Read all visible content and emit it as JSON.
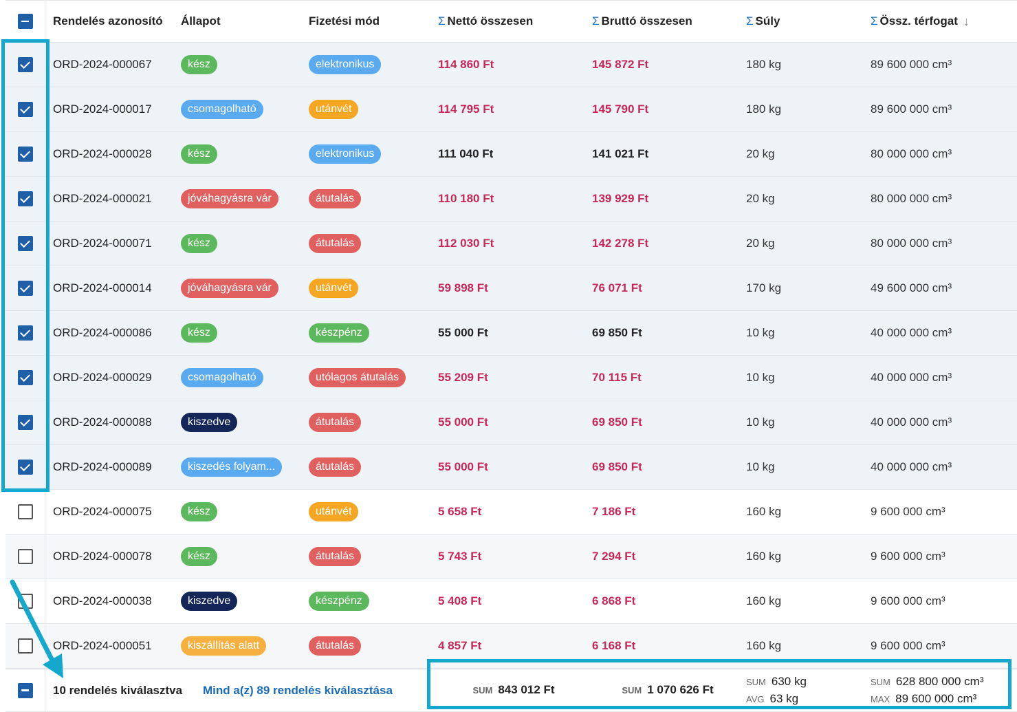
{
  "columns": {
    "id": "Rendelés azonosító",
    "status": "Állapot",
    "payment": "Fizetési mód",
    "net": "Nettó összesen",
    "gross": "Bruttó összesen",
    "weight": "Súly",
    "volume": "Össz. térfogat"
  },
  "rows": [
    {
      "id": "ORD-2024-000067",
      "status": "kész",
      "status_color": "#5cb85c",
      "payment": "elektronikus",
      "payment_color": "#5aaaf0",
      "net": "114 860 Ft",
      "gross": "145 872 Ft",
      "weight": "180 kg",
      "volume": "89 600 000 cm³",
      "selected": true,
      "money_color": "#c62858"
    },
    {
      "id": "ORD-2024-000017",
      "status": "csomagolható",
      "status_color": "#5aaaf0",
      "payment": "utánvét",
      "payment_color": "#f5a623",
      "net": "114 795 Ft",
      "gross": "145 790 Ft",
      "weight": "180 kg",
      "volume": "89 600 000 cm³",
      "selected": true,
      "money_color": "#c62858"
    },
    {
      "id": "ORD-2024-000028",
      "status": "kész",
      "status_color": "#5cb85c",
      "payment": "elektronikus",
      "payment_color": "#5aaaf0",
      "net": "111 040 Ft",
      "gross": "141 021 Ft",
      "weight": "20 kg",
      "volume": "80 000 000 cm³",
      "selected": true,
      "money_color": "#222222"
    },
    {
      "id": "ORD-2024-000021",
      "status": "jóváhagyásra vár",
      "status_color": "#e0605f",
      "payment": "átutalás",
      "payment_color": "#e0605f",
      "net": "110 180 Ft",
      "gross": "139 929 Ft",
      "weight": "20 kg",
      "volume": "80 000 000 cm³",
      "selected": true,
      "money_color": "#c62858"
    },
    {
      "id": "ORD-2024-000071",
      "status": "kész",
      "status_color": "#5cb85c",
      "payment": "átutalás",
      "payment_color": "#e0605f",
      "net": "112 030 Ft",
      "gross": "142 278 Ft",
      "weight": "20 kg",
      "volume": "80 000 000 cm³",
      "selected": true,
      "money_color": "#c62858"
    },
    {
      "id": "ORD-2024-000014",
      "status": "jóváhagyásra vár",
      "status_color": "#e0605f",
      "payment": "utánvét",
      "payment_color": "#f5a623",
      "net": "59 898 Ft",
      "gross": "76 071 Ft",
      "weight": "170 kg",
      "volume": "49 600 000 cm³",
      "selected": true,
      "money_color": "#c62858"
    },
    {
      "id": "ORD-2024-000086",
      "status": "kész",
      "status_color": "#5cb85c",
      "payment": "készpénz",
      "payment_color": "#5cb85c",
      "net": "55 000 Ft",
      "gross": "69 850 Ft",
      "weight": "10 kg",
      "volume": "40 000 000 cm³",
      "selected": true,
      "money_color": "#222222"
    },
    {
      "id": "ORD-2024-000029",
      "status": "csomagolható",
      "status_color": "#5aaaf0",
      "payment": "utólagos átutalás",
      "payment_color": "#e0605f",
      "net": "55 209 Ft",
      "gross": "70 115 Ft",
      "weight": "10 kg",
      "volume": "40 000 000 cm³",
      "selected": true,
      "money_color": "#c62858"
    },
    {
      "id": "ORD-2024-000088",
      "status": "kiszedve",
      "status_color": "#142657",
      "payment": "átutalás",
      "payment_color": "#e0605f",
      "net": "55 000 Ft",
      "gross": "69 850 Ft",
      "weight": "10 kg",
      "volume": "40 000 000 cm³",
      "selected": true,
      "money_color": "#c62858"
    },
    {
      "id": "ORD-2024-000089",
      "status": "kiszedés folyam...",
      "status_color": "#5aaaf0",
      "payment": "átutalás",
      "payment_color": "#e0605f",
      "net": "55 000 Ft",
      "gross": "69 850 Ft",
      "weight": "10 kg",
      "volume": "40 000 000 cm³",
      "selected": true,
      "money_color": "#c62858"
    },
    {
      "id": "ORD-2024-000075",
      "status": "kész",
      "status_color": "#5cb85c",
      "payment": "utánvét",
      "payment_color": "#f5a623",
      "net": "5 658 Ft",
      "gross": "7 186 Ft",
      "weight": "160 kg",
      "volume": "9 600 000 cm³",
      "selected": false,
      "money_color": "#c62858"
    },
    {
      "id": "ORD-2024-000078",
      "status": "kész",
      "status_color": "#5cb85c",
      "payment": "átutalás",
      "payment_color": "#e0605f",
      "net": "5 743 Ft",
      "gross": "7 294 Ft",
      "weight": "160 kg",
      "volume": "9 600 000 cm³",
      "selected": false,
      "money_color": "#c62858"
    },
    {
      "id": "ORD-2024-000038",
      "status": "kiszedve",
      "status_color": "#142657",
      "payment": "készpénz",
      "payment_color": "#5cb85c",
      "net": "5 408 Ft",
      "gross": "6 868 Ft",
      "weight": "160 kg",
      "volume": "9 600 000 cm³",
      "selected": false,
      "money_color": "#c62858"
    },
    {
      "id": "ORD-2024-000051",
      "status": "kiszállítás alatt",
      "status_color": "#f5b040",
      "payment": "átutalás",
      "payment_color": "#e0605f",
      "net": "4 857 Ft",
      "gross": "6 168 Ft",
      "weight": "160 kg",
      "volume": "9 600 000 cm³",
      "selected": false,
      "money_color": "#c62858"
    }
  ],
  "footer": {
    "selected_count": "10 rendelés kiválasztva",
    "select_all": "Mind a(z) 89 rendelés kiválasztása",
    "net_label": "SUM",
    "net_sum": "843 012 Ft",
    "gross_label": "SUM",
    "gross_sum": "1 070 626 Ft",
    "weight_sum_label": "SUM",
    "weight_sum": "630 kg",
    "weight_avg_label": "AVG",
    "weight_avg": "63 kg",
    "volume_sum_label": "SUM",
    "volume_sum": "628 800 000 cm³",
    "volume_max_label": "MAX",
    "volume_max": "89 600 000 cm³"
  },
  "icons": {
    "sigma": "Σ",
    "sort": "↓"
  },
  "highlight_color": "#14a8cc"
}
